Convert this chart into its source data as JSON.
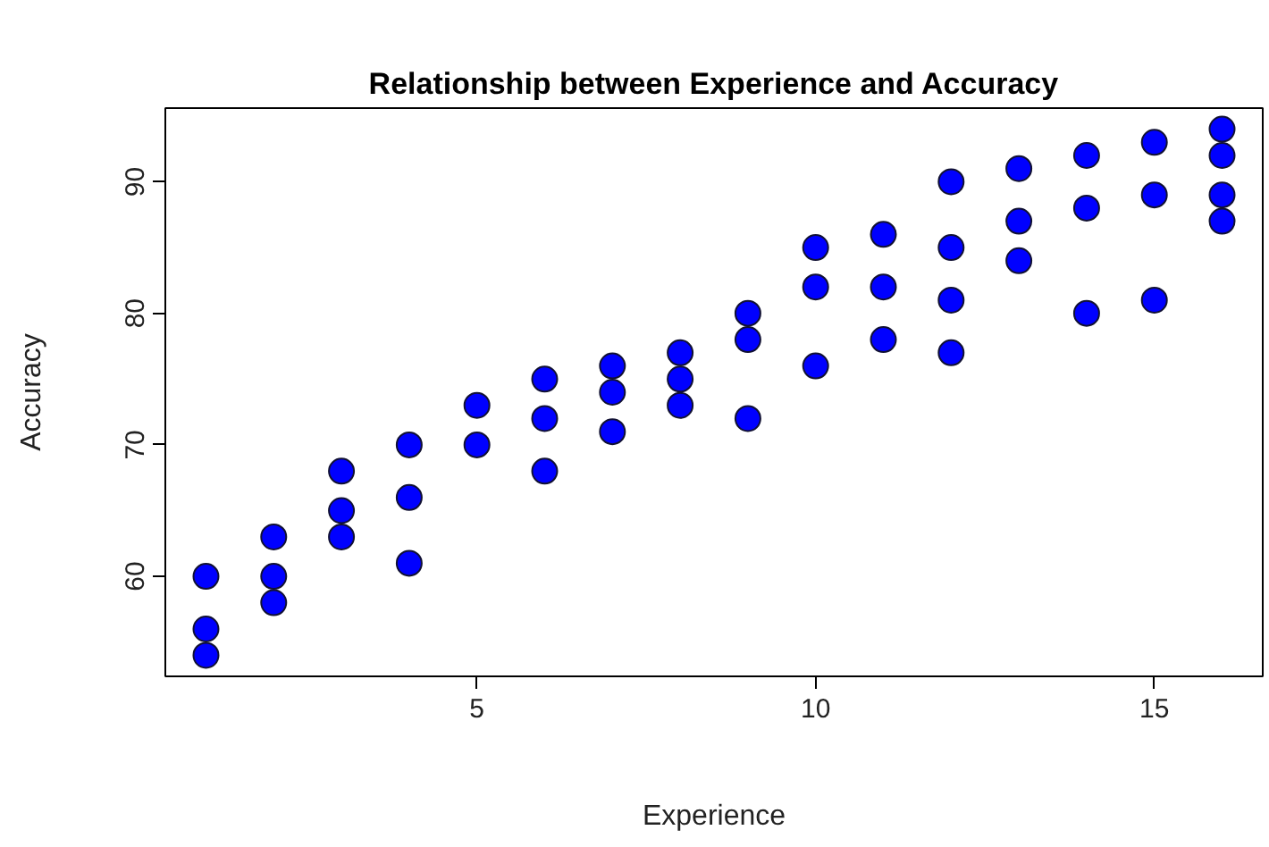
{
  "chart_data": {
    "type": "scatter",
    "title": "Relationship between Experience and Accuracy",
    "xlabel": "Experience",
    "ylabel": "Accuracy",
    "x": [
      1,
      1,
      1,
      2,
      2,
      2,
      3,
      3,
      3,
      4,
      4,
      4,
      5,
      5,
      6,
      6,
      6,
      7,
      7,
      7,
      8,
      8,
      8,
      9,
      9,
      9,
      10,
      10,
      10,
      11,
      11,
      11,
      12,
      12,
      12,
      12,
      13,
      13,
      13,
      14,
      14,
      14,
      15,
      15,
      15,
      16,
      16,
      16,
      16
    ],
    "values": [
      60,
      56,
      54,
      63,
      60,
      58,
      68,
      65,
      63,
      70,
      66,
      61,
      73,
      70,
      75,
      72,
      68,
      76,
      74,
      71,
      77,
      75,
      73,
      80,
      78,
      72,
      85,
      82,
      76,
      86,
      82,
      78,
      90,
      85,
      81,
      77,
      91,
      87,
      84,
      92,
      88,
      80,
      93,
      89,
      81,
      94,
      92,
      89,
      87
    ],
    "color": "#0000ff",
    "marker": "circle",
    "grid": false,
    "xlim": [
      0.4,
      16.6
    ],
    "ylim": [
      52.4,
      95.6
    ],
    "xticks": [
      5,
      10,
      15
    ],
    "yticks": [
      60,
      70,
      80,
      90
    ]
  }
}
